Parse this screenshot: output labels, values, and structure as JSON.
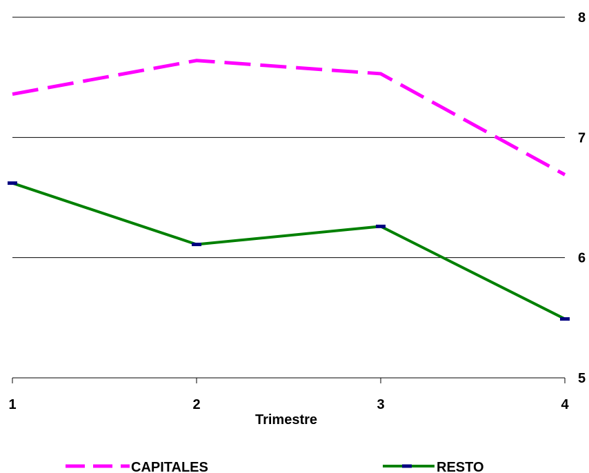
{
  "chart_data": {
    "type": "line",
    "title": "",
    "xlabel": "Trimestre",
    "ylabel": "",
    "x": [
      1,
      2,
      3,
      4
    ],
    "x_tick_labels": [
      "1",
      "2",
      "3",
      "4"
    ],
    "ylim": [
      5,
      8
    ],
    "y_ticks": [
      5,
      6,
      7,
      8
    ],
    "y_axis_position": "right",
    "grid": true,
    "legend_position": "bottom",
    "series": [
      {
        "name": "CAPITALES",
        "values": [
          7.36,
          7.64,
          7.53,
          6.69
        ],
        "color": "#ff00ff",
        "style": "dashed"
      },
      {
        "name": "RESTO",
        "values": [
          6.62,
          6.11,
          6.26,
          5.49
        ],
        "color": "#008000",
        "marker_color": "#000080",
        "style": "solid"
      }
    ]
  }
}
